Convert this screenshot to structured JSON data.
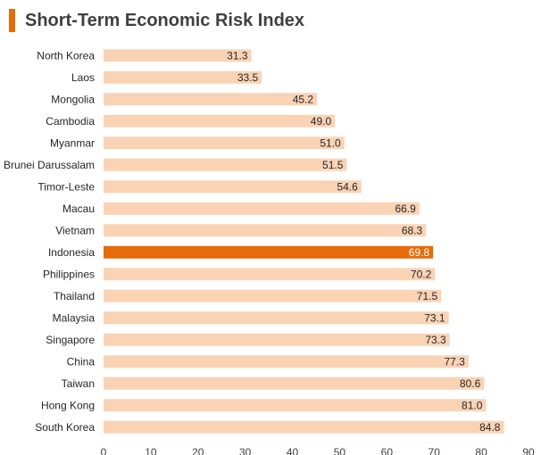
{
  "chart_data": {
    "type": "bar",
    "orientation": "horizontal",
    "title": "Short-Term Economic Risk Index",
    "categories": [
      "North Korea",
      "Laos",
      "Mongolia",
      "Cambodia",
      "Myanmar",
      "Brunei Darussalam",
      "Timor-Leste",
      "Macau",
      "Vietnam",
      "Indonesia",
      "Philippines",
      "Thailand",
      "Malaysia",
      "Singapore",
      "China",
      "Taiwan",
      "Hong Kong",
      "South Korea"
    ],
    "values": [
      31.3,
      33.5,
      45.2,
      49.0,
      51.0,
      51.5,
      54.6,
      66.9,
      68.3,
      69.8,
      70.2,
      71.5,
      73.1,
      73.3,
      77.3,
      80.6,
      81.0,
      84.8
    ],
    "value_labels": [
      "31.3",
      "33.5",
      "45.2",
      "49.0",
      "51.0",
      "51.5",
      "54.6",
      "66.9",
      "68.3",
      "69.8",
      "70.2",
      "71.5",
      "73.1",
      "73.3",
      "77.3",
      "80.6",
      "81.0",
      "84.8"
    ],
    "highlight": "Indonesia",
    "xlim": [
      0,
      90
    ],
    "xticks": [
      0,
      10,
      20,
      30,
      40,
      50,
      60,
      70,
      80,
      90
    ],
    "xlabel": "",
    "ylabel": "",
    "grid": false,
    "colors": {
      "bar": "#FAD3B5",
      "highlight": "#E46C0A",
      "accent": "#E46C0A",
      "title": "#404040"
    }
  }
}
